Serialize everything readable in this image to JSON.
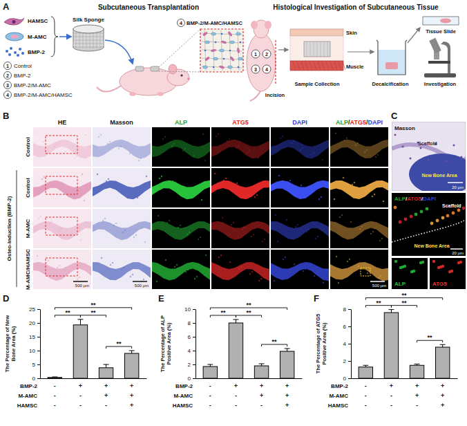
{
  "panel_a": {
    "letter": "A",
    "components": [
      "HAMSC",
      "M-AMC",
      "BMP-2"
    ],
    "groups": [
      {
        "number": 1,
        "label": "Control"
      },
      {
        "number": 2,
        "label": "BMP-2"
      },
      {
        "number": 3,
        "label": "BMP-2/M-AMC"
      },
      {
        "number": 4,
        "label": "BMP-2/M-AMC/HAMSC"
      }
    ],
    "scaffold": "Silk Sponge",
    "left_title": "Subcutaneous Transplantation",
    "inset": {
      "number": 4,
      "label": "BMP-2/M-AMC/HAMSC"
    },
    "right_title": "Histological Investigation of Subcutaneous Tissue",
    "layers": [
      "Skin",
      "Muscle"
    ],
    "incision": "Incision",
    "steps": [
      "Sample Collection",
      "Decalcification",
      "Tissue Slide",
      "Investigation"
    ]
  },
  "panel_b": {
    "letter": "B",
    "columns": [
      "HE",
      "Masson",
      "ALP",
      "ATG5",
      "DAPI",
      "ALP/ATG5/DAPI"
    ],
    "rows": [
      "Control",
      "Control",
      "M-AMC",
      "M-AMC/HAMSC"
    ],
    "group_label": {
      "text": "Osteo-Induction (BMP-2)",
      "rows": [
        1,
        3
      ]
    },
    "scale_bar": "500 μm"
  },
  "panel_c": {
    "letter": "C",
    "top_title": "Masson",
    "bottom_title": "ALP/ATG5/DAPI",
    "scaffold": "Scaffold",
    "new_bone": "New Bone Area",
    "scale_bar": "20 μm",
    "channels": [
      "ALP",
      "ATG5"
    ]
  },
  "chart_data": [
    {
      "type": "bar",
      "panel": "D",
      "y_label": "The Percentage of New Bone Area (%)",
      "categories": [
        null,
        null,
        null,
        null
      ],
      "values": [
        0.3,
        19.3,
        3.8,
        9
      ],
      "errors": [
        0.2,
        2,
        1.2,
        1
      ],
      "color": "#b0b0b0",
      "ylim": [
        0,
        25
      ],
      "yticks": [
        0,
        5,
        10,
        15,
        20,
        25
      ],
      "comparisons": [
        {
          "between": [
            0,
            1
          ],
          "label": "**"
        },
        {
          "between": [
            1,
            2
          ],
          "label": "**"
        },
        {
          "between": [
            2,
            3
          ],
          "label": "**"
        },
        {
          "between": [
            0,
            3
          ],
          "label": "**"
        }
      ],
      "conditions": [
        {
          "name": "BMP-2",
          "values": [
            "-",
            "+",
            "+",
            "+"
          ]
        },
        {
          "name": "M-AMC",
          "values": [
            "-",
            "-",
            "+",
            "+"
          ]
        },
        {
          "name": "HAMSC",
          "values": [
            "-",
            "-",
            "-",
            "+"
          ]
        }
      ]
    },
    {
      "type": "bar",
      "panel": "E",
      "y_label": "The Percentage of ALP Positive Area (%)",
      "categories": [
        null,
        null,
        null,
        null
      ],
      "values": [
        1.7,
        8,
        1.8,
        3.9
      ],
      "errors": [
        0.3,
        0.5,
        0.3,
        0.4
      ],
      "color": "#b0b0b0",
      "ylim": [
        0,
        10
      ],
      "yticks": [
        0,
        2,
        4,
        6,
        8,
        10
      ],
      "comparisons": [
        {
          "between": [
            0,
            1
          ],
          "label": "**"
        },
        {
          "between": [
            1,
            2
          ],
          "label": "**"
        },
        {
          "between": [
            2,
            3
          ],
          "label": "**"
        },
        {
          "between": [
            0,
            3
          ],
          "label": "**"
        }
      ],
      "conditions": [
        {
          "name": "BMP-2",
          "values": [
            "-",
            "+",
            "+",
            "+"
          ]
        },
        {
          "name": "M-AMC",
          "values": [
            "-",
            "-",
            "+",
            "+"
          ]
        },
        {
          "name": "HAMSC",
          "values": [
            "-",
            "-",
            "-",
            "+"
          ]
        }
      ]
    },
    {
      "type": "bar",
      "panel": "F",
      "y_label": "The Percentage of ATG5 Positive Area (%)",
      "categories": [
        null,
        null,
        null,
        null
      ],
      "values": [
        1.3,
        7.6,
        1.5,
        3.6
      ],
      "errors": [
        0.2,
        0.35,
        0.15,
        0.3
      ],
      "color": "#b0b0b0",
      "ylim": [
        0,
        8
      ],
      "yticks": [
        0,
        2,
        4,
        6,
        8
      ],
      "comparisons": [
        {
          "between": [
            0,
            1
          ],
          "label": "**"
        },
        {
          "between": [
            1,
            2
          ],
          "label": "**"
        },
        {
          "between": [
            2,
            3
          ],
          "label": "**"
        },
        {
          "between": [
            0,
            3
          ],
          "label": "**"
        }
      ],
      "conditions": [
        {
          "name": "BMP-2",
          "values": [
            "-",
            "+",
            "+",
            "+"
          ]
        },
        {
          "name": "M-AMC",
          "values": [
            "-",
            "-",
            "+",
            "+"
          ]
        },
        {
          "name": "HAMSC",
          "values": [
            "-",
            "-",
            "-",
            "+"
          ]
        }
      ]
    }
  ]
}
